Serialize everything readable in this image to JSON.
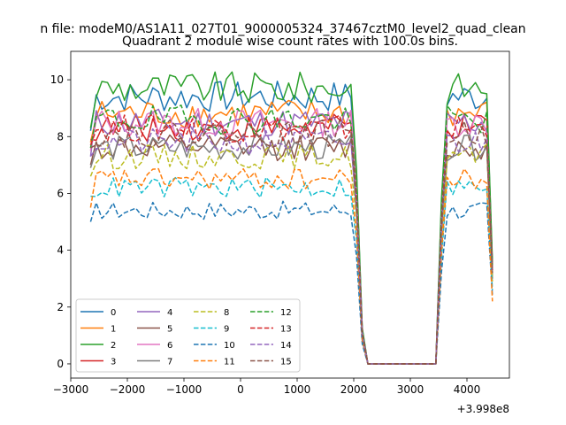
{
  "chart_data": {
    "type": "line",
    "suptitle": "n file: modeM0/AS1A11_027T01_9000005324_37467cztM0_level2_quad_clean",
    "title": "Quadrant 2 module wise count rates with 100.0s bins.",
    "xlabel": "",
    "ylabel": "",
    "x_offset_label": "+3.998e8",
    "xlim": [
      -3000,
      4750
    ],
    "ylim": [
      -0.5,
      11
    ],
    "xticks": [
      -3000,
      -2000,
      -1000,
      0,
      1000,
      2000,
      3000,
      4000
    ],
    "xtick_labels": [
      "−3000",
      "−2000",
      "−1000",
      "0",
      "1000",
      "2000",
      "3000",
      "4000"
    ],
    "yticks": [
      0,
      2,
      4,
      6,
      8,
      10
    ],
    "ytick_labels": [
      "0",
      "2",
      "4",
      "6",
      "8",
      "10"
    ],
    "grid": false,
    "legend": {
      "placement": "lower-left",
      "columns": 4,
      "entries": [
        "0",
        "1",
        "2",
        "3",
        "4",
        "5",
        "6",
        "7",
        "8",
        "9",
        "10",
        "11",
        "12",
        "13",
        "14",
        "15"
      ]
    },
    "x_window_start": -2650,
    "x_window_end": 1950,
    "x_step": 100,
    "series": [
      {
        "name": "0",
        "color": "#1f77b4",
        "dash": "solid",
        "level": 9.4,
        "start": 8.2,
        "end": 3.5
      },
      {
        "name": "1",
        "color": "#ff7f0e",
        "dash": "solid",
        "level": 8.8,
        "start": 7.8,
        "end": 3.2
      },
      {
        "name": "2",
        "color": "#2ca02c",
        "dash": "solid",
        "level": 9.7,
        "start": 8.3,
        "end": 3.6
      },
      {
        "name": "3",
        "color": "#d62728",
        "dash": "solid",
        "level": 8.3,
        "start": 7.9,
        "end": 3.3
      },
      {
        "name": "4",
        "color": "#9467bd",
        "dash": "solid",
        "level": 8.5,
        "start": 7.3,
        "end": 3.3
      },
      {
        "name": "5",
        "color": "#8c564b",
        "dash": "solid",
        "level": 7.6,
        "start": 7.0,
        "end": 3.0
      },
      {
        "name": "6",
        "color": "#e377c2",
        "dash": "solid",
        "level": 8.5,
        "start": 7.5,
        "end": 3.3
      },
      {
        "name": "7",
        "color": "#7f7f7f",
        "dash": "solid",
        "level": 7.6,
        "start": 6.9,
        "end": 3.0
      },
      {
        "name": "8",
        "color": "#bcbd22",
        "dash": "dashed",
        "level": 7.3,
        "start": 6.6,
        "end": 2.9
      },
      {
        "name": "9",
        "color": "#17becf",
        "dash": "dashed",
        "level": 6.2,
        "start": 5.9,
        "end": 2.6
      },
      {
        "name": "10",
        "color": "#1f77b4",
        "dash": "dashed",
        "level": 5.4,
        "start": 5.0,
        "end": 2.4
      },
      {
        "name": "11",
        "color": "#ff7f0e",
        "dash": "dashed",
        "level": 6.5,
        "start": 5.5,
        "end": 2.2
      },
      {
        "name": "12",
        "color": "#2ca02c",
        "dash": "dashed",
        "level": 8.6,
        "start": 7.6,
        "end": 3.4
      },
      {
        "name": "13",
        "color": "#d62728",
        "dash": "dashed",
        "level": 8.3,
        "start": 7.7,
        "end": 3.3
      },
      {
        "name": "14",
        "color": "#9467bd",
        "dash": "dashed",
        "level": 7.8,
        "start": 7.3,
        "end": 3.2
      },
      {
        "name": "15",
        "color": "#8c564b",
        "dash": "dashed",
        "level": 8.1,
        "start": 7.6,
        "end": 3.2
      }
    ],
    "gap_points": [
      {
        "x": 2050,
        "y_factor": 0.7
      },
      {
        "x": 2150,
        "y_factor": 0.13
      },
      {
        "x": 2250,
        "y": 0
      },
      {
        "x": 3450,
        "y": 0
      },
      {
        "x": 3550,
        "y_factor": 0.6
      }
    ],
    "second_window": [
      3650,
      3750,
      3850,
      3950,
      4050,
      4150,
      4250,
      4350
    ]
  }
}
